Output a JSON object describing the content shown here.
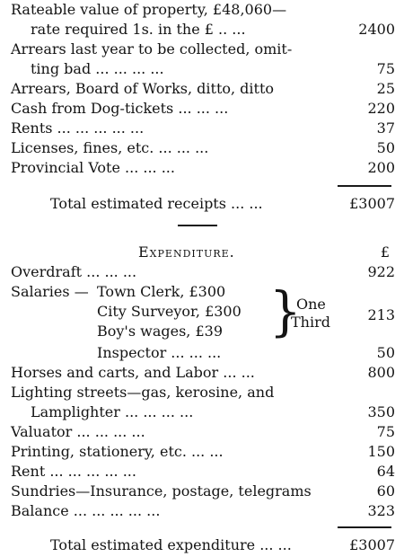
{
  "receipts": {
    "lines": [
      {
        "text": "Rateable value of property, £48,060—",
        "amount": ""
      },
      {
        "text": "rate required 1s. in the £ .. ...",
        "amount": "2400"
      },
      {
        "text": "Arrears last year to be collected, omit-",
        "amount": ""
      },
      {
        "text": "ting bad ... ... ... ...",
        "amount": "75"
      },
      {
        "text": "Arrears, Board of Works, ditto, ditto",
        "amount": "25"
      },
      {
        "text": "Cash from Dog-tickets ... ... ...",
        "amount": "220"
      },
      {
        "text": "Rents ... ... ... ... ...",
        "amount": "37"
      },
      {
        "text": "Licenses, fines, etc. ... ... ...",
        "amount": "50"
      },
      {
        "text": "Provincial Vote ... ... ...",
        "amount": "200"
      }
    ],
    "total_label": "Total estimated receipts ... ...",
    "total_amount": "£3007"
  },
  "expenditure": {
    "heading": "Expenditure.",
    "currency_symbol": "£",
    "overdraft": {
      "text": "Overdraft ... ... ...",
      "amount": "922"
    },
    "salaries": {
      "label": "Salaries —",
      "items": [
        "Town Clerk, £300",
        "City Surveyor, £300",
        "Boy's wages, £39"
      ],
      "note_line1": "One",
      "note_line2": "Third",
      "amount": "213"
    },
    "inspector": {
      "text": "Inspector ... ... ...",
      "amount": "50"
    },
    "lines": [
      {
        "text": "Horses and carts, and Labor ... ...",
        "amount": "800"
      },
      {
        "text": "Lighting streets—gas, kerosine, and",
        "amount": ""
      },
      {
        "text": "Lamplighter ... ... ... ...",
        "amount": "350"
      },
      {
        "text": "Valuator ... ... ... ...",
        "amount": "75"
      },
      {
        "text": "Printing, stationery, etc. ... ...",
        "amount": "150"
      },
      {
        "text": "Rent ... ... ... ... ...",
        "amount": "64"
      },
      {
        "text": "Sundries—Insurance, postage, telegrams",
        "amount": "60"
      },
      {
        "text": "Balance ... ... ... ... ...",
        "amount": "323"
      }
    ],
    "total_label": "Total estimated expenditure ... ...",
    "total_amount": "£3007"
  }
}
